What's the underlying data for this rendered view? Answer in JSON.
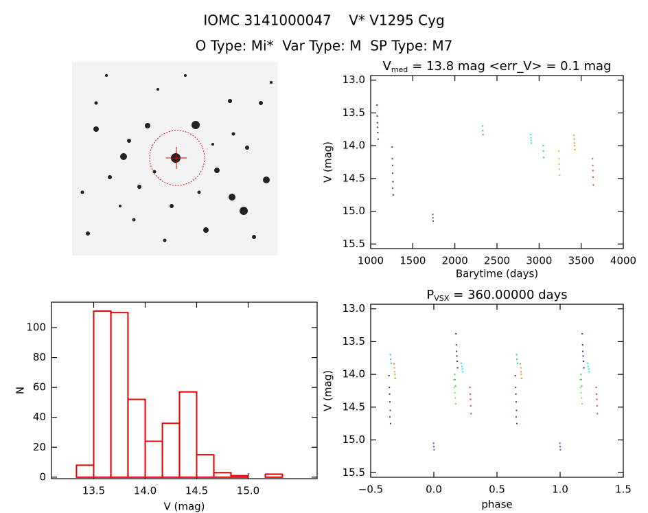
{
  "header": {
    "title": "IOMC 3141000047    V* V1295 Cyg",
    "subtitle": "O Type: Mi*  Var Type: M  SP Type: M7"
  },
  "chart_data": [
    {
      "type": "scatter",
      "title": "V",
      "title_subscript": "med",
      "title_rest": "= 13.8 mag <err_V> = 0.1 mag",
      "x_label": "Barytime (days)",
      "y_label": "V (mag)",
      "xlim": [
        1000,
        4000
      ],
      "xticks": [
        1000,
        1500,
        2000,
        2500,
        3000,
        3500,
        4000
      ],
      "ylim": [
        15.57,
        12.93
      ],
      "yticks": [
        {
          "value": 13,
          "label": "13.0"
        },
        13.5,
        {
          "value": 14,
          "label": "14.0"
        },
        14.5,
        {
          "value": 15,
          "label": "15.0"
        },
        15.5
      ],
      "series": [
        {
          "color": "#5b1a8c",
          "x": [
            1075,
            1078,
            1080,
            1082,
            1085,
            1088
          ],
          "y": [
            13.38,
            13.55,
            13.65,
            13.72,
            13.8,
            13.9
          ]
        },
        {
          "color": "#4a2aa8",
          "x": [
            1255,
            1258,
            1260,
            1262,
            1265,
            1268,
            1262
          ],
          "y": [
            14.02,
            14.2,
            14.3,
            14.42,
            14.55,
            14.75,
            14.65
          ]
        },
        {
          "color": "#3a5ad0",
          "x": [
            1738,
            1740,
            1742
          ],
          "y": [
            15.05,
            15.1,
            15.15
          ]
        },
        {
          "color": "#29b8e0",
          "x": [
            2330,
            2332,
            2335
          ],
          "y": [
            13.7,
            13.77,
            13.83
          ]
        },
        {
          "color": "#30e0e0",
          "x": [
            2900,
            2903,
            2906,
            2908
          ],
          "y": [
            13.83,
            13.88,
            13.92,
            13.96
          ]
        },
        {
          "color": "#30d070",
          "x": [
            3050,
            3052,
            3055
          ],
          "y": [
            14.0,
            14.08,
            14.18
          ]
        },
        {
          "color": "#90e040",
          "x": [
            3235,
            3238,
            3240,
            3242,
            3245
          ],
          "y": [
            14.08,
            14.2,
            14.28,
            14.36,
            14.45
          ]
        },
        {
          "color": "#f09020",
          "x": [
            3415,
            3418,
            3420,
            3422,
            3425
          ],
          "y": [
            13.84,
            13.9,
            13.96,
            14.0,
            14.06
          ]
        },
        {
          "color": "#e04020",
          "x": [
            3635,
            3638,
            3640,
            3642,
            3645
          ],
          "y": [
            14.2,
            14.3,
            14.38,
            14.48,
            14.6
          ]
        }
      ]
    },
    {
      "type": "histogram",
      "x_label": "V (mag)",
      "y_label": "N",
      "color": "#e00000",
      "bins": [
        13.333,
        13.5,
        13.667,
        13.833,
        14.0,
        14.167,
        14.333,
        14.5,
        14.667,
        14.833,
        15.0,
        15.167,
        15.333
      ],
      "values": [
        8,
        111,
        110,
        52,
        24,
        36,
        57,
        15,
        3,
        1,
        0,
        2
      ],
      "xlim": [
        13.09,
        15.67
      ],
      "xticks": [
        13.5,
        {
          "value": 14,
          "label": "14.0"
        },
        14.5,
        {
          "value": 15,
          "label": "15.0"
        }
      ],
      "ylim": [
        -1,
        117
      ],
      "yticks": [
        0,
        20,
        40,
        60,
        80,
        100
      ]
    },
    {
      "type": "scatter",
      "title": "P",
      "title_subscript": "VSX",
      "title_rest": "= 360.00000 days",
      "x_label": "phase",
      "y_label": "V (mag)",
      "xlim": [
        -0.5,
        1.5
      ],
      "xticks": [
        {
          "value": -0.5,
          "label": "−0.5"
        },
        {
          "value": 0,
          "label": "0.0"
        },
        0.5,
        {
          "value": 1,
          "label": "1.0"
        },
        1.5
      ],
      "ylim": [
        15.57,
        12.93
      ],
      "yticks": [
        {
          "value": 13,
          "label": "13.0"
        },
        13.5,
        {
          "value": 14,
          "label": "14.0"
        },
        14.5,
        {
          "value": 15,
          "label": "15.0"
        },
        15.5
      ],
      "series": [
        {
          "color": "#5b1a8c",
          "x": [
            0.175,
            0.178,
            0.18,
            0.182,
            0.185,
            0.188,
            1.175,
            1.178,
            1.18,
            1.182,
            1.185,
            1.188
          ],
          "y": [
            13.38,
            13.55,
            13.65,
            13.72,
            13.8,
            13.9,
            13.38,
            13.55,
            13.65,
            13.72,
            13.8,
            13.9
          ]
        },
        {
          "color": "#4a2aa8",
          "x": [
            -0.355,
            -0.352,
            -0.35,
            -0.348,
            -0.345,
            -0.342,
            -0.348,
            0.645,
            0.648,
            0.65,
            0.652,
            0.655,
            0.658,
            0.652
          ],
          "y": [
            14.02,
            14.2,
            14.3,
            14.42,
            14.55,
            14.75,
            14.65,
            14.02,
            14.2,
            14.3,
            14.42,
            14.55,
            14.75,
            14.65
          ]
        },
        {
          "color": "#3a5ad0",
          "x": [
            -0.002,
            0.0,
            0.002,
            0.998,
            1.0,
            1.002
          ],
          "y": [
            15.05,
            15.1,
            15.15,
            15.05,
            15.1,
            15.15
          ]
        },
        {
          "color": "#29b8e0",
          "x": [
            -0.345,
            -0.342,
            -0.338,
            0.655,
            0.658,
            0.662
          ],
          "y": [
            13.7,
            13.77,
            13.83,
            13.7,
            13.77,
            13.83
          ]
        },
        {
          "color": "#30e0e0",
          "x": [
            0.218,
            0.222,
            0.226,
            0.23,
            1.218,
            1.222,
            1.226,
            1.23
          ],
          "y": [
            13.83,
            13.88,
            13.92,
            13.96,
            13.83,
            13.88,
            13.92,
            13.96
          ]
        },
        {
          "color": "#30d070",
          "x": [
            0.165,
            0.168,
            0.172,
            1.165,
            1.168,
            1.172
          ],
          "y": [
            14.0,
            14.08,
            14.18,
            14.0,
            14.08,
            14.18
          ]
        },
        {
          "color": "#90e040",
          "x": [
            0.158,
            0.162,
            0.166,
            0.17,
            0.174,
            1.158,
            1.162,
            1.166,
            1.17,
            1.174
          ],
          "y": [
            14.08,
            14.2,
            14.28,
            14.36,
            14.45,
            14.08,
            14.2,
            14.28,
            14.36,
            14.45
          ]
        },
        {
          "color": "#f09020",
          "x": [
            -0.315,
            -0.312,
            -0.31,
            -0.308,
            -0.305,
            0.685,
            0.688,
            0.69,
            0.692,
            0.695
          ],
          "y": [
            13.84,
            13.9,
            13.96,
            14.0,
            14.06,
            13.84,
            13.9,
            13.96,
            14.0,
            14.06
          ]
        },
        {
          "color": "#e04020",
          "x": [
            0.285,
            0.288,
            0.29,
            0.292,
            0.295,
            1.285,
            1.288,
            1.29,
            1.292,
            1.295
          ],
          "y": [
            14.2,
            14.3,
            14.38,
            14.48,
            14.6,
            14.2,
            14.3,
            14.38,
            14.48,
            14.6
          ]
        }
      ]
    }
  ]
}
